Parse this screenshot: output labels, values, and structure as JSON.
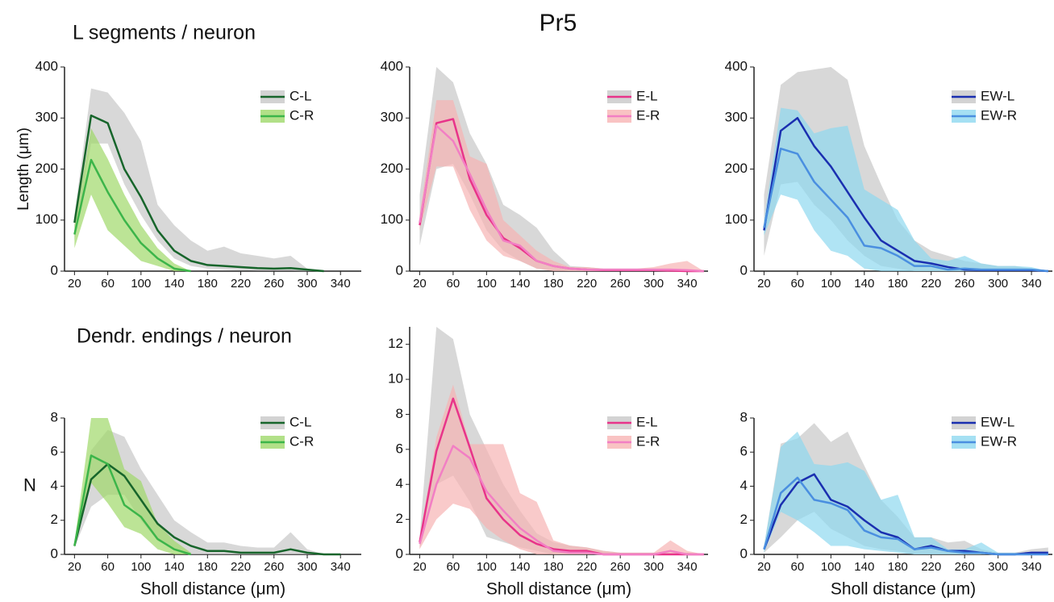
{
  "title": "Pr5",
  "row_titles": [
    "L segments / neuron",
    "Dendr. endings / neuron"
  ],
  "chart_data": [
    {
      "type": "line",
      "ylabel": "Length (μm)",
      "x": [
        20,
        40,
        60,
        80,
        100,
        120,
        140,
        160,
        180,
        200,
        220,
        240,
        260,
        280,
        300,
        320
      ],
      "xlim": [
        8,
        365
      ],
      "xticks": [
        20,
        60,
        100,
        140,
        180,
        220,
        260,
        300,
        340
      ],
      "ylim": [
        0,
        400
      ],
      "yticks": [
        0,
        100,
        200,
        300,
        400
      ],
      "series": [
        {
          "name": "C-L",
          "color": "#17652b",
          "band_color": "#c8c8c8",
          "values": [
            95,
            305,
            290,
            200,
            145,
            80,
            40,
            20,
            12,
            10,
            8,
            6,
            5,
            6,
            3,
            0
          ],
          "lower": [
            60,
            250,
            250,
            170,
            110,
            60,
            25,
            10,
            5,
            3,
            2,
            1,
            1,
            1,
            0,
            0
          ],
          "upper": [
            110,
            358,
            350,
            310,
            255,
            130,
            90,
            60,
            40,
            48,
            35,
            30,
            25,
            30,
            5,
            0
          ]
        },
        {
          "name": "C-R",
          "color": "#3cb54a",
          "band_color": "#9fd86a",
          "values": [
            72,
            218,
            155,
            100,
            55,
            25,
            5,
            0,
            null,
            null,
            null,
            null,
            null,
            null,
            null,
            null
          ],
          "lower": [
            45,
            150,
            80,
            50,
            20,
            10,
            0,
            0,
            null,
            null,
            null,
            null,
            null,
            null,
            null,
            null
          ],
          "upper": [
            90,
            280,
            220,
            150,
            90,
            45,
            15,
            0,
            null,
            null,
            null,
            null,
            null,
            null,
            null,
            null
          ]
        }
      ]
    },
    {
      "type": "line",
      "x": [
        20,
        40,
        60,
        80,
        100,
        120,
        140,
        160,
        180,
        200,
        220,
        240,
        260,
        280,
        300,
        320,
        340,
        360
      ],
      "xlim": [
        8,
        365
      ],
      "xticks": [
        20,
        60,
        100,
        140,
        180,
        220,
        260,
        300,
        340
      ],
      "ylim": [
        0,
        400
      ],
      "yticks": [
        0,
        100,
        200,
        300,
        400
      ],
      "series": [
        {
          "name": "E-L",
          "color": "#e8348a",
          "band_color": "#c8c8c8",
          "values": [
            90,
            290,
            298,
            180,
            110,
            65,
            45,
            20,
            10,
            5,
            3,
            2,
            2,
            2,
            2,
            1,
            0,
            0
          ],
          "lower": [
            50,
            200,
            210,
            150,
            80,
            40,
            20,
            5,
            2,
            0,
            0,
            0,
            0,
            0,
            0,
            0,
            0,
            0
          ],
          "upper": [
            150,
            400,
            370,
            270,
            210,
            130,
            110,
            85,
            40,
            10,
            8,
            5,
            5,
            5,
            5,
            5,
            3,
            0
          ]
        },
        {
          "name": "E-R",
          "color": "#f27fc4",
          "band_color": "#f7b4b4",
          "values": [
            95,
            285,
            255,
            190,
            120,
            60,
            50,
            20,
            10,
            5,
            3,
            3,
            3,
            3,
            3,
            3,
            2,
            0
          ],
          "lower": [
            80,
            205,
            205,
            120,
            60,
            30,
            20,
            5,
            0,
            0,
            0,
            0,
            0,
            0,
            0,
            0,
            0,
            0
          ],
          "upper": [
            110,
            335,
            335,
            225,
            210,
            100,
            70,
            40,
            20,
            8,
            8,
            5,
            5,
            5,
            8,
            15,
            20,
            0
          ]
        }
      ]
    },
    {
      "type": "line",
      "x": [
        20,
        40,
        60,
        80,
        100,
        120,
        140,
        160,
        180,
        200,
        220,
        240,
        260,
        280,
        300,
        320,
        340,
        360
      ],
      "xlim": [
        8,
        365
      ],
      "xticks": [
        20,
        60,
        100,
        140,
        180,
        220,
        260,
        300,
        340
      ],
      "ylim": [
        0,
        400
      ],
      "yticks": [
        0,
        100,
        200,
        300,
        400
      ],
      "series": [
        {
          "name": "EW-L",
          "color": "#1a2fb0",
          "band_color": "#c8c8c8",
          "values": [
            80,
            275,
            300,
            245,
            205,
            155,
            105,
            60,
            40,
            20,
            15,
            8,
            3,
            2,
            2,
            2,
            2,
            0
          ],
          "lower": [
            30,
            170,
            175,
            130,
            100,
            60,
            30,
            10,
            5,
            0,
            0,
            0,
            0,
            0,
            0,
            0,
            0,
            0
          ],
          "upper": [
            150,
            365,
            390,
            395,
            400,
            375,
            245,
            170,
            100,
            60,
            40,
            30,
            20,
            15,
            10,
            10,
            5,
            0
          ]
        },
        {
          "name": "EW-R",
          "color": "#4a8fe0",
          "band_color": "#8fd8f0",
          "values": [
            85,
            240,
            230,
            175,
            140,
            105,
            50,
            45,
            30,
            10,
            10,
            3,
            5,
            3,
            3,
            3,
            3,
            0
          ],
          "lower": [
            70,
            150,
            140,
            80,
            40,
            30,
            5,
            0,
            0,
            0,
            0,
            0,
            0,
            0,
            0,
            0,
            0,
            0
          ],
          "upper": [
            100,
            320,
            315,
            270,
            280,
            285,
            160,
            140,
            120,
            60,
            25,
            20,
            30,
            15,
            10,
            10,
            8,
            0
          ]
        }
      ]
    },
    {
      "type": "line",
      "ylabel": "N",
      "xlabel": "Sholl distance (μm)",
      "x": [
        20,
        40,
        60,
        80,
        100,
        120,
        140,
        160,
        180,
        200,
        220,
        240,
        260,
        280,
        300,
        320,
        340
      ],
      "xlim": [
        8,
        365
      ],
      "xticks": [
        20,
        60,
        100,
        140,
        180,
        220,
        260,
        300,
        340
      ],
      "ylim": [
        0,
        8
      ],
      "yticks": [
        0,
        2,
        4,
        6,
        8
      ],
      "series": [
        {
          "name": "C-L",
          "color": "#17652b",
          "band_color": "#c8c8c8",
          "values": [
            0.5,
            4.4,
            5.3,
            4.6,
            3.2,
            1.8,
            1.0,
            0.5,
            0.2,
            0.2,
            0.1,
            0.1,
            0.1,
            0.3,
            0.1,
            0,
            0
          ],
          "lower": [
            0.4,
            2.8,
            3.5,
            3.5,
            2.0,
            0.8,
            0.3,
            0,
            0,
            0,
            0,
            0,
            0,
            0,
            0,
            0,
            0
          ],
          "upper": [
            0.6,
            6.1,
            7.3,
            6.9,
            5.0,
            3.5,
            2.0,
            1.3,
            0.7,
            0.7,
            0.5,
            0.4,
            0.4,
            1.3,
            0.3,
            0,
            0
          ]
        },
        {
          "name": "C-R",
          "color": "#3cb54a",
          "band_color": "#9fd86a",
          "values": [
            0.5,
            5.8,
            5.3,
            2.9,
            2.2,
            0.9,
            0.3,
            0,
            null,
            null,
            null,
            null,
            null,
            null,
            null,
            null,
            null
          ],
          "lower": [
            0.4,
            4.2,
            3.0,
            1.6,
            1.2,
            0.3,
            0,
            0,
            null,
            null,
            null,
            null,
            null,
            null,
            null,
            null,
            null
          ],
          "upper": [
            0.7,
            8,
            8,
            5,
            4.3,
            1.8,
            0.8,
            0.1,
            null,
            null,
            null,
            null,
            null,
            null,
            null,
            null,
            null
          ]
        }
      ]
    },
    {
      "type": "line",
      "xlabel": "Sholl distance (μm)",
      "x": [
        20,
        40,
        60,
        80,
        100,
        120,
        140,
        160,
        180,
        200,
        220,
        240,
        260,
        280,
        300,
        320,
        340,
        360
      ],
      "xlim": [
        8,
        365
      ],
      "xticks": [
        20,
        60,
        100,
        140,
        180,
        220,
        260,
        300,
        340
      ],
      "ylim": [
        0,
        13
      ],
      "yticks": [
        0,
        2,
        4,
        6,
        8,
        10,
        12
      ],
      "series": [
        {
          "name": "E-L",
          "color": "#e8348a",
          "band_color": "#c8c8c8",
          "values": [
            0.7,
            5.9,
            8.9,
            6.1,
            3.2,
            2.0,
            1.1,
            0.6,
            0.3,
            0.2,
            0.2,
            0,
            0,
            0,
            0,
            0,
            0,
            0
          ],
          "lower": [
            0.3,
            4,
            4.5,
            3.0,
            1.0,
            0.7,
            0.4,
            0.2,
            0,
            0,
            0,
            0,
            0,
            0,
            0,
            0,
            0,
            0
          ],
          "upper": [
            1,
            13,
            12.3,
            8,
            6,
            4,
            2.5,
            1.2,
            0.7,
            0.5,
            0.4,
            0.2,
            0.1,
            0.1,
            0.1,
            0.1,
            0.1,
            0
          ]
        },
        {
          "name": "E-R",
          "color": "#f27fc4",
          "band_color": "#f7b4b4",
          "values": [
            0.6,
            4.0,
            6.2,
            5.5,
            3.6,
            2.5,
            1.5,
            0.8,
            0.2,
            0.1,
            0.1,
            0,
            0,
            0,
            0,
            0.2,
            0,
            0
          ],
          "lower": [
            0.3,
            2.0,
            2.9,
            2.6,
            1.5,
            0.8,
            0.3,
            0,
            0,
            0,
            0,
            0,
            0,
            0,
            0,
            0,
            0,
            0
          ],
          "upper": [
            0.9,
            6.7,
            9.7,
            6.3,
            6.3,
            6.3,
            3.5,
            3.0,
            0.8,
            0.5,
            0.4,
            0.2,
            0.1,
            0.1,
            0.1,
            0.8,
            0.2,
            0
          ]
        }
      ]
    },
    {
      "type": "line",
      "xlabel": "Sholl distance (μm)",
      "x": [
        20,
        40,
        60,
        80,
        100,
        120,
        140,
        160,
        180,
        200,
        220,
        240,
        260,
        280,
        300,
        320,
        340,
        360
      ],
      "xlim": [
        8,
        365
      ],
      "xticks": [
        20,
        60,
        100,
        140,
        180,
        220,
        260,
        300,
        340
      ],
      "ylim": [
        0,
        8
      ],
      "yticks": [
        0,
        2,
        4,
        6,
        8
      ],
      "series": [
        {
          "name": "EW-L",
          "color": "#1a2fb0",
          "band_color": "#c8c8c8",
          "values": [
            0.3,
            2.9,
            4.2,
            4.7,
            3.2,
            2.8,
            2.0,
            1.3,
            1.0,
            0.3,
            0.5,
            0.2,
            0.2,
            0.1,
            0,
            0,
            0.1,
            0.1
          ],
          "lower": [
            0.1,
            1,
            2,
            2.5,
            1.5,
            1,
            0.5,
            0.3,
            0.2,
            0,
            0,
            0,
            0,
            0,
            0,
            0,
            0,
            0
          ],
          "upper": [
            0.5,
            6.5,
            6.8,
            7.7,
            6.6,
            7.2,
            5.2,
            3.2,
            2.2,
            1,
            1,
            0.7,
            0.8,
            0.3,
            0.1,
            0.1,
            0.3,
            0.4
          ]
        },
        {
          "name": "EW-R",
          "color": "#4a8fe0",
          "band_color": "#8fd8f0",
          "values": [
            0.3,
            3.6,
            4.5,
            3.2,
            3.0,
            2.6,
            1.4,
            1.0,
            0.9,
            0.3,
            0.4,
            0.2,
            0.1,
            0.1,
            0,
            0,
            0,
            0
          ],
          "lower": [
            0.1,
            2.5,
            2,
            1.3,
            0.5,
            0.5,
            0.3,
            0.2,
            0.1,
            0,
            0,
            0,
            0,
            0,
            0,
            0,
            0,
            0
          ],
          "upper": [
            0.5,
            6.3,
            7.2,
            5.3,
            5.2,
            5.4,
            4.9,
            3.2,
            3.5,
            1,
            1,
            0.3,
            0.3,
            0.7,
            0.1,
            0.1,
            0.1,
            0.1
          ]
        }
      ]
    }
  ]
}
